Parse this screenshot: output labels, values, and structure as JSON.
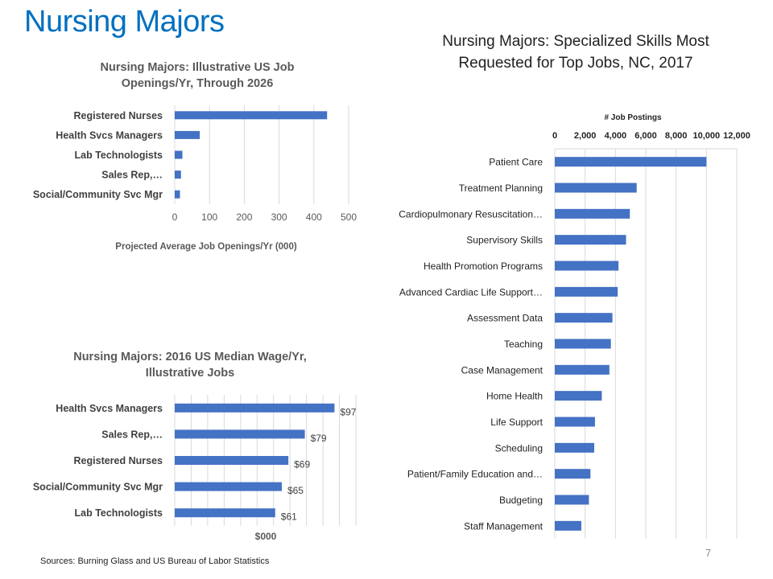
{
  "slide": {
    "title": "Nursing Majors",
    "sources": "Sources: Burning Glass and US Bureau of Labor Statistics",
    "page_number": "7"
  },
  "chart_data": [
    {
      "type": "bar",
      "orientation": "horizontal",
      "title": "Nursing Majors: Illustrative US Job Openings/Yr, Through 2026",
      "xlabel": "Projected Average Job Openings/Yr (000)",
      "categories": [
        "Registered Nurses",
        "Health Svcs Managers",
        "Lab Technologists",
        "Sales Rep,…",
        "Social/Community Svc Mgr"
      ],
      "values": [
        438,
        72,
        22,
        18,
        15
      ],
      "xlim": [
        0,
        500
      ],
      "ticks": [
        "0",
        "100",
        "200",
        "300",
        "400",
        "500"
      ],
      "grid": true,
      "bar_color": "#4472c4"
    },
    {
      "type": "bar",
      "orientation": "horizontal",
      "title": "Nursing Majors: 2016 US Median Wage/Yr, Illustrative Jobs",
      "xlabel": "$000",
      "categories": [
        "Health Svcs Managers",
        "Sales Rep,…",
        "Registered Nurses",
        "Social/Community Svc Mgr",
        "Lab Technologists"
      ],
      "values": [
        97,
        79,
        69,
        65,
        61
      ],
      "data_labels": [
        "$97",
        "$79",
        "$69",
        "$65",
        "$61"
      ],
      "xlim": [
        0,
        110
      ],
      "grid": true,
      "bar_color": "#4472c4"
    },
    {
      "type": "bar",
      "orientation": "horizontal",
      "title": "Nursing Majors: Specialized Skills Most Requested for Top Jobs, NC, 2017",
      "xlabel": "# Job Postings",
      "axis_position": "top",
      "categories": [
        "Patient Care",
        "Treatment Planning",
        "Cardiopulmonary Resuscitation…",
        "Supervisory Skills",
        "Health Promotion Programs",
        "Advanced Cardiac Life Support…",
        "Assessment Data",
        "Teaching",
        "Case Management",
        "Home Health",
        "Life Support",
        "Scheduling",
        "Patient/Family Education and…",
        "Budgeting",
        "Staff Management"
      ],
      "values": [
        10000,
        5400,
        4950,
        4700,
        4200,
        4150,
        3800,
        3700,
        3600,
        3100,
        2650,
        2600,
        2350,
        2250,
        1750
      ],
      "xlim": [
        0,
        12000
      ],
      "ticks": [
        "0",
        "2,000",
        "4,000",
        "6,000",
        "8,000",
        "10,000",
        "12,000"
      ],
      "grid": true,
      "bar_color": "#4472c4"
    }
  ]
}
